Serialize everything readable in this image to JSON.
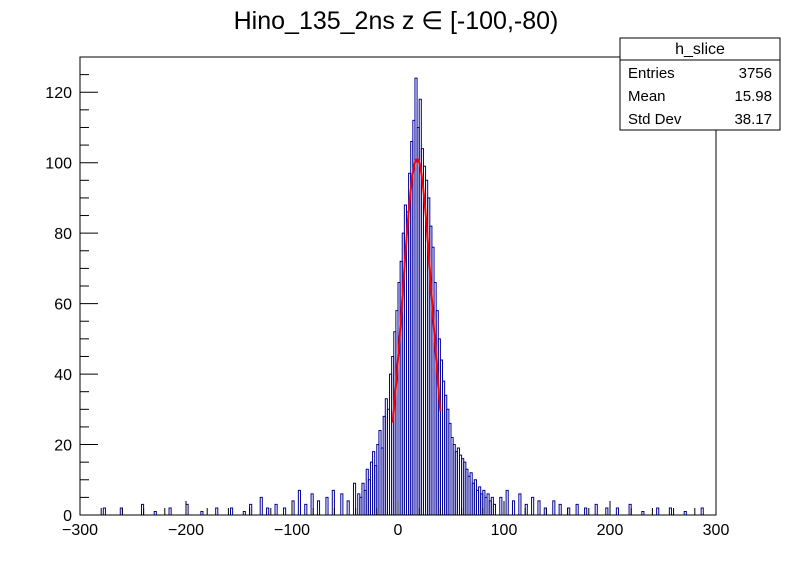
{
  "chart_data": {
    "type": "histogram",
    "title": "Hino_135_2ns z  ∈ [-100,-80)",
    "xlabel": "",
    "ylabel": "",
    "xlim": [
      -300,
      300
    ],
    "ylim": [
      0,
      130
    ],
    "x_ticks": [
      -300,
      -200,
      -100,
      0,
      100,
      200,
      300
    ],
    "x_tick_labels": [
      "−300",
      "−200",
      "−100",
      "0",
      "100",
      "200",
      "300"
    ],
    "y_ticks": [
      0,
      20,
      40,
      60,
      80,
      100,
      120
    ],
    "y_tick_labels": [
      "0",
      "20",
      "40",
      "60",
      "80",
      "100",
      "120"
    ],
    "histogram_color": "#000099",
    "fit_color": "#ff0000",
    "histogram": {
      "bin_width": 2,
      "sparse_bins": [
        {
          "x": -278,
          "y": 2
        },
        {
          "x": -262,
          "y": 2
        },
        {
          "x": -242,
          "y": 3
        },
        {
          "x": -230,
          "y": 1
        },
        {
          "x": -216,
          "y": 2
        },
        {
          "x": -200,
          "y": 3
        },
        {
          "x": -186,
          "y": 1
        },
        {
          "x": -172,
          "y": 2
        },
        {
          "x": -158,
          "y": 2
        },
        {
          "x": -146,
          "y": 1
        },
        {
          "x": -140,
          "y": 3
        },
        {
          "x": -130,
          "y": 5
        },
        {
          "x": -124,
          "y": 2
        },
        {
          "x": -116,
          "y": 3
        },
        {
          "x": -108,
          "y": 2
        },
        {
          "x": -100,
          "y": 4
        },
        {
          "x": -94,
          "y": 7
        },
        {
          "x": -88,
          "y": 3
        },
        {
          "x": -82,
          "y": 6
        },
        {
          "x": -76,
          "y": 4
        },
        {
          "x": -68,
          "y": 5
        },
        {
          "x": -62,
          "y": 7
        },
        {
          "x": -54,
          "y": 6
        },
        {
          "x": -48,
          "y": 4
        },
        {
          "x": -42,
          "y": 9
        },
        {
          "x": -38,
          "y": 6
        },
        {
          "x": 96,
          "y": 5
        },
        {
          "x": 102,
          "y": 7
        },
        {
          "x": 108,
          "y": 4
        },
        {
          "x": 114,
          "y": 6
        },
        {
          "x": 120,
          "y": 3
        },
        {
          "x": 126,
          "y": 5
        },
        {
          "x": 132,
          "y": 4
        },
        {
          "x": 138,
          "y": 2
        },
        {
          "x": 146,
          "y": 4
        },
        {
          "x": 152,
          "y": 3
        },
        {
          "x": 160,
          "y": 2
        },
        {
          "x": 168,
          "y": 3
        },
        {
          "x": 176,
          "y": 2
        },
        {
          "x": 186,
          "y": 3
        },
        {
          "x": 196,
          "y": 2
        },
        {
          "x": 206,
          "y": 2
        },
        {
          "x": 218,
          "y": 3
        },
        {
          "x": 230,
          "y": 1
        },
        {
          "x": 244,
          "y": 2
        },
        {
          "x": 256,
          "y": 2
        },
        {
          "x": 270,
          "y": 1
        },
        {
          "x": 286,
          "y": 2
        }
      ],
      "core_bins": [
        {
          "x": -36,
          "y": 5
        },
        {
          "x": -34,
          "y": 9
        },
        {
          "x": -32,
          "y": 7
        },
        {
          "x": -30,
          "y": 13
        },
        {
          "x": -28,
          "y": 10
        },
        {
          "x": -26,
          "y": 15
        },
        {
          "x": -24,
          "y": 18
        },
        {
          "x": -22,
          "y": 14
        },
        {
          "x": -20,
          "y": 20
        },
        {
          "x": -18,
          "y": 24
        },
        {
          "x": -16,
          "y": 19
        },
        {
          "x": -14,
          "y": 28
        },
        {
          "x": -12,
          "y": 33
        },
        {
          "x": -10,
          "y": 30
        },
        {
          "x": -8,
          "y": 40
        },
        {
          "x": -6,
          "y": 45
        },
        {
          "x": -4,
          "y": 52
        },
        {
          "x": -2,
          "y": 58
        },
        {
          "x": 0,
          "y": 66
        },
        {
          "x": 2,
          "y": 72
        },
        {
          "x": 4,
          "y": 80
        },
        {
          "x": 6,
          "y": 88
        },
        {
          "x": 8,
          "y": 86
        },
        {
          "x": 10,
          "y": 97
        },
        {
          "x": 12,
          "y": 106
        },
        {
          "x": 14,
          "y": 112
        },
        {
          "x": 16,
          "y": 124
        },
        {
          "x": 18,
          "y": 110
        },
        {
          "x": 20,
          "y": 118
        },
        {
          "x": 22,
          "y": 104
        },
        {
          "x": 24,
          "y": 99
        },
        {
          "x": 26,
          "y": 95
        },
        {
          "x": 28,
          "y": 90
        },
        {
          "x": 30,
          "y": 82
        },
        {
          "x": 32,
          "y": 76
        },
        {
          "x": 34,
          "y": 66
        },
        {
          "x": 36,
          "y": 58
        },
        {
          "x": 38,
          "y": 50
        },
        {
          "x": 40,
          "y": 44
        },
        {
          "x": 42,
          "y": 38
        },
        {
          "x": 44,
          "y": 34
        },
        {
          "x": 46,
          "y": 30
        },
        {
          "x": 48,
          "y": 26
        },
        {
          "x": 50,
          "y": 22
        },
        {
          "x": 52,
          "y": 20
        },
        {
          "x": 54,
          "y": 18
        },
        {
          "x": 56,
          "y": 19
        },
        {
          "x": 58,
          "y": 17
        },
        {
          "x": 60,
          "y": 16
        },
        {
          "x": 62,
          "y": 15
        },
        {
          "x": 64,
          "y": 13
        },
        {
          "x": 66,
          "y": 11
        },
        {
          "x": 68,
          "y": 12
        },
        {
          "x": 70,
          "y": 9
        },
        {
          "x": 72,
          "y": 10
        },
        {
          "x": 74,
          "y": 7
        },
        {
          "x": 76,
          "y": 8
        },
        {
          "x": 78,
          "y": 6
        },
        {
          "x": 80,
          "y": 7
        },
        {
          "x": 82,
          "y": 5
        },
        {
          "x": 84,
          "y": 6
        },
        {
          "x": 86,
          "y": 4
        },
        {
          "x": 88,
          "y": 5
        },
        {
          "x": 90,
          "y": 3
        }
      ]
    },
    "fit": {
      "function": "gaus",
      "range": [
        -5,
        40
      ],
      "amplitude": 101,
      "mean": 18,
      "sigma": 14
    },
    "stats_box": {
      "title": "h_slice",
      "rows": [
        {
          "label": "Entries",
          "value": "3756"
        },
        {
          "label": "Mean",
          "value": "15.98"
        },
        {
          "label": "Std Dev",
          "value": "38.17"
        }
      ]
    }
  }
}
